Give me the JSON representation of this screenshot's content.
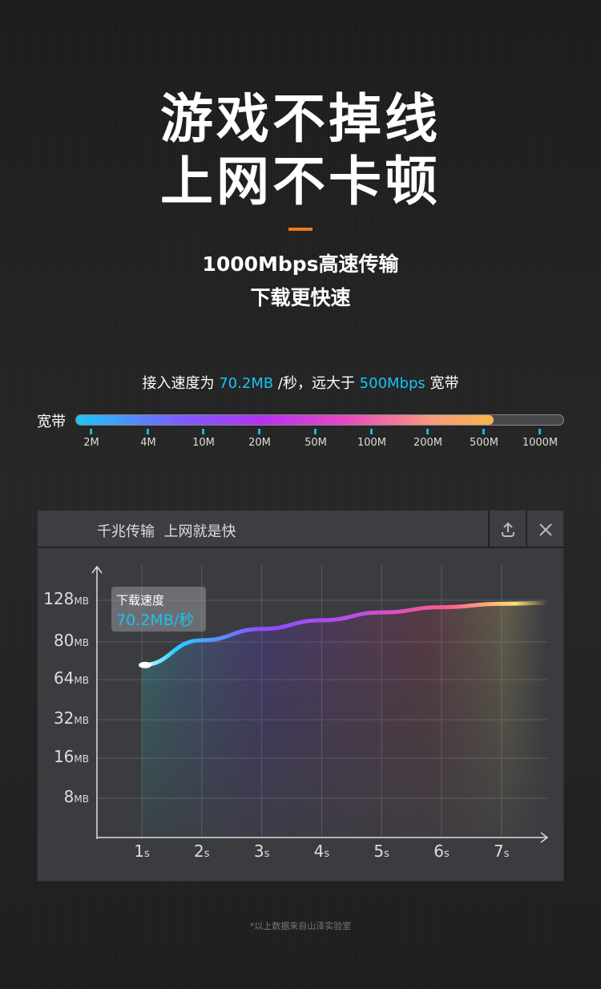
{
  "headline": {
    "line1": "游戏不掉线",
    "line2": "上网不卡顿"
  },
  "subhead": {
    "line1": "1000Mbps高速传输",
    "line2": "下载更快速"
  },
  "speed_text": {
    "prefix": "接入速度为 ",
    "value": "70.2MB",
    "mid": " /秒，远大于 ",
    "compare": "500Mbps",
    "suffix": " 宽带"
  },
  "bandwidth_bar": {
    "label": "宽带",
    "ticks": [
      "2M",
      "4M",
      "10M",
      "20M",
      "50M",
      "100M",
      "200M",
      "500M",
      "1000M"
    ],
    "fill_level": "500M",
    "colors": {
      "accent": "#18c3f2",
      "highlight": "#f07a1a"
    }
  },
  "panel": {
    "title": "千兆传输  上网就是快",
    "share_icon": "upload-icon",
    "close_icon": "close-icon"
  },
  "chart_data": {
    "type": "line",
    "x": [
      1,
      2,
      3,
      4,
      5,
      6,
      7
    ],
    "values": [
      70.2,
      82,
      95,
      105,
      114,
      120,
      124
    ],
    "y_ticks": [
      {
        "value": "128",
        "unit": "MB"
      },
      {
        "value": "80",
        "unit": "MB"
      },
      {
        "value": "64",
        "unit": "MB"
      },
      {
        "value": "32",
        "unit": "MB"
      },
      {
        "value": "16",
        "unit": "MB"
      },
      {
        "value": "8",
        "unit": "MB"
      }
    ],
    "x_ticks": [
      {
        "value": "1",
        "unit": "s"
      },
      {
        "value": "2",
        "unit": "s"
      },
      {
        "value": "3",
        "unit": "s"
      },
      {
        "value": "4",
        "unit": "s"
      },
      {
        "value": "5",
        "unit": "s"
      },
      {
        "value": "6",
        "unit": "s"
      },
      {
        "value": "7",
        "unit": "s"
      }
    ],
    "tooltip": {
      "label": "下载速度",
      "value": "70.2MB/秒"
    },
    "grid": true
  },
  "footnote": "*以上数据来自山泽实验室"
}
